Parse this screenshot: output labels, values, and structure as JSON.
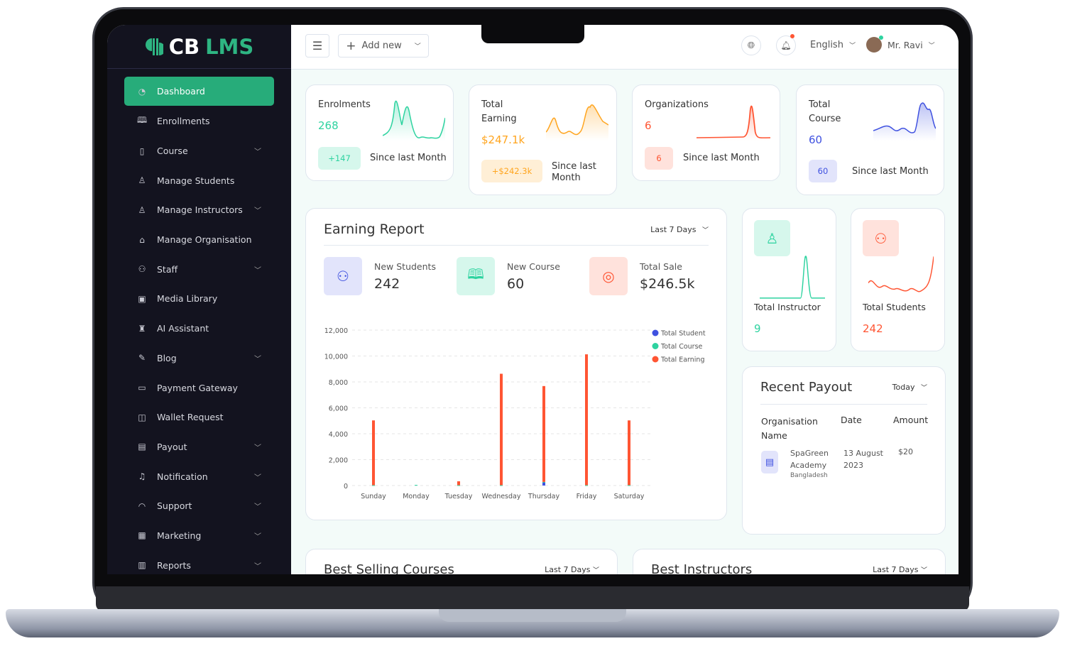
{
  "brand": {
    "prefix": "CB",
    "name": "LMS"
  },
  "sidebar": {
    "items": [
      {
        "label": "Dashboard",
        "icon": "gauge-icon",
        "active": true
      },
      {
        "label": "Enrollments",
        "icon": "book-open-icon"
      },
      {
        "label": "Course",
        "icon": "book-icon",
        "chevron": true
      },
      {
        "label": "Manage Students",
        "icon": "award-icon"
      },
      {
        "label": "Manage Instructors",
        "icon": "user-icon",
        "chevron": true
      },
      {
        "label": "Manage Organisation",
        "icon": "building-icon"
      },
      {
        "label": "Staff",
        "icon": "users-icon",
        "chevron": true
      },
      {
        "label": "Media Library",
        "icon": "media-icon"
      },
      {
        "label": "AI Assistant",
        "icon": "robot-icon"
      },
      {
        "label": "Blog",
        "icon": "blog-icon",
        "chevron": true
      },
      {
        "label": "Payment Gateway",
        "icon": "card-icon"
      },
      {
        "label": "Wallet Request",
        "icon": "wallet-icon"
      },
      {
        "label": "Payout",
        "icon": "payout-icon",
        "chevron": true
      },
      {
        "label": "Notification",
        "icon": "bell-icon",
        "chevron": true
      },
      {
        "label": "Support",
        "icon": "headset-icon",
        "chevron": true
      },
      {
        "label": "Marketing",
        "icon": "grid-icon",
        "chevron": true
      },
      {
        "label": "Reports",
        "icon": "report-icon",
        "chevron": true
      }
    ]
  },
  "header": {
    "add_new": "Add new",
    "language": "English",
    "user": "Mr. Ravi"
  },
  "stats": [
    {
      "title": "Enrolments",
      "value": "268",
      "badge": "+147",
      "since": "Since last Month",
      "color": "#2ed3a0"
    },
    {
      "title": "Total Earning",
      "value": "$247.1k",
      "badge": "+$242.3k",
      "since": "Since last Month",
      "color": "#ffa51f"
    },
    {
      "title": "Organizations",
      "value": "6",
      "badge": "6",
      "since": "Since last Month",
      "color": "#ff5533"
    },
    {
      "title": "Total Course",
      "value": "60",
      "badge": "60",
      "since": "Since last Month",
      "color": "#3f51e0"
    }
  ],
  "earning_report": {
    "title": "Earning Report",
    "period": "Last 7 Days",
    "summary": [
      {
        "label": "New Students",
        "value": "242",
        "icon": "users-icon"
      },
      {
        "label": "New Course",
        "value": "60",
        "icon": "book-open-icon"
      },
      {
        "label": "Total Sale",
        "value": "$246.5k",
        "icon": "coins-icon"
      }
    ]
  },
  "chart_data": {
    "type": "bar",
    "categories": [
      "Sunday",
      "Monday",
      "Tuesday",
      "Wednesday",
      "Thursday",
      "Friday",
      "Saturday"
    ],
    "series": [
      {
        "name": "Total Student",
        "color": "#3f51e0",
        "values": [
          0,
          0,
          0,
          0,
          250,
          0,
          0
        ]
      },
      {
        "name": "Total Course",
        "color": "#2ed3a0",
        "values": [
          30,
          50,
          30,
          30,
          30,
          30,
          30
        ]
      },
      {
        "name": "Total Earning",
        "color": "#ff5533",
        "values": [
          5000,
          0,
          300,
          8600,
          7400,
          10100,
          5000
        ]
      }
    ],
    "ylim": [
      0,
      12000
    ],
    "yticks": [
      "0",
      "2,000",
      "4,000",
      "6,000",
      "8,000",
      "10,000",
      "12,000"
    ],
    "stacked": true,
    "grid": true,
    "legend": "top-right"
  },
  "mini": [
    {
      "title": "Total Instructor",
      "value": "9",
      "color": "#2ed3a0"
    },
    {
      "title": "Total Students",
      "value": "242",
      "color": "#ff5533"
    }
  ],
  "payout": {
    "title": "Recent Payout",
    "period": "Today",
    "headers": [
      "Organisation Name",
      "Date",
      "Amount"
    ],
    "rows": [
      {
        "org": "SpaGreen Academy",
        "country": "Bangladesh",
        "date": "13 August 2023",
        "amount": "$20"
      }
    ]
  },
  "best_courses": {
    "title": "Best Selling Courses",
    "period": "Last 7 Days"
  },
  "best_instructors": {
    "title": "Best Instructors",
    "period": "Last 7 Days"
  }
}
